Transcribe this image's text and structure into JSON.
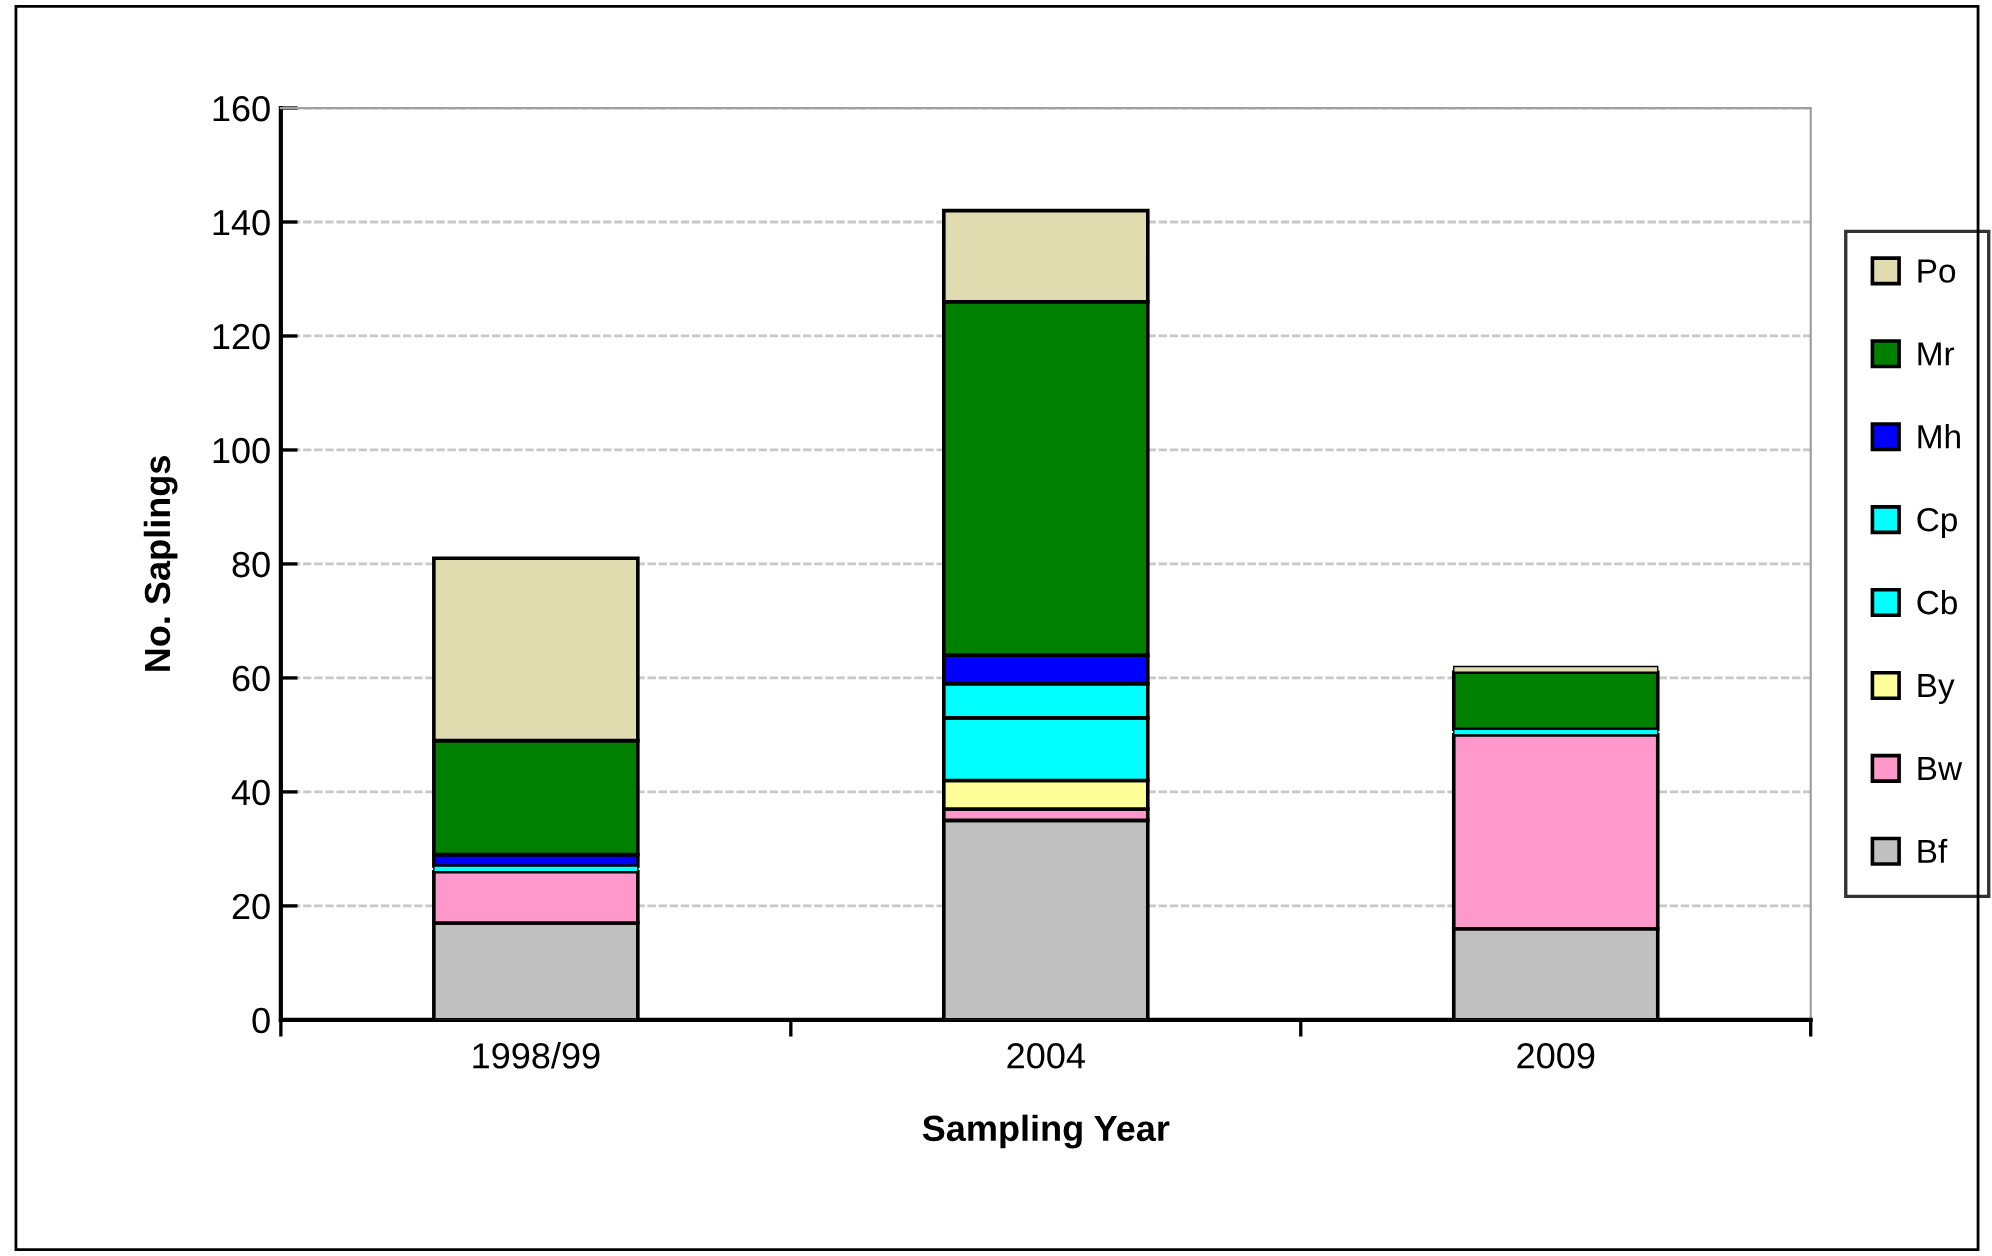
{
  "chart_data": {
    "type": "bar",
    "stacked": true,
    "xlabel": "Sampling Year",
    "ylabel": "No. Saplings",
    "categories": [
      "1998/99",
      "2004",
      "2009"
    ],
    "ylim": [
      0,
      160
    ],
    "yticks": [
      0,
      20,
      40,
      60,
      80,
      100,
      120,
      140,
      160
    ],
    "grid": "y",
    "legend": "right",
    "series": [
      {
        "name": "Bf",
        "color": "#c0c0c0",
        "values": [
          17,
          35,
          16
        ]
      },
      {
        "name": "Bw",
        "color": "#ff99cc",
        "values": [
          9,
          2,
          34
        ]
      },
      {
        "name": "By",
        "color": "#ffff99",
        "values": [
          0,
          5,
          0
        ]
      },
      {
        "name": "Cb",
        "color": "#00ffff",
        "values": [
          1,
          11,
          1
        ]
      },
      {
        "name": "Cp",
        "color": "#00ffff",
        "values": [
          0,
          6,
          0
        ]
      },
      {
        "name": "Mh",
        "color": "#0000ff",
        "values": [
          2,
          5,
          0
        ]
      },
      {
        "name": "Mr",
        "color": "#008000",
        "values": [
          20,
          62,
          10
        ]
      },
      {
        "name": "Po",
        "color": "#e0dcb0",
        "values": [
          32,
          16,
          1
        ]
      }
    ]
  }
}
